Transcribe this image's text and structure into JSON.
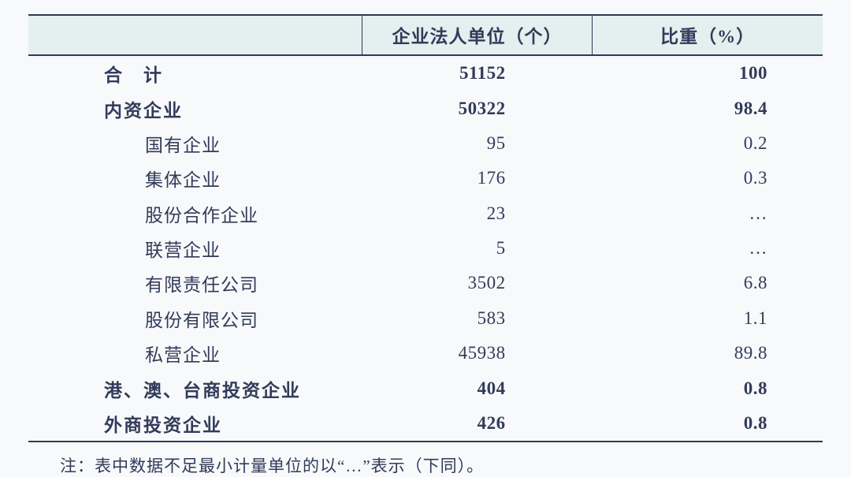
{
  "table": {
    "type": "table",
    "background_color": "#f8f9fb",
    "header_background": "#e4eff0",
    "border_color": "#2f3a55",
    "text_color": "#323b59",
    "font_family": "SimSun",
    "header_fontsize_pt": 17,
    "body_fontsize_pt": 17,
    "columns": [
      {
        "label": "",
        "width_pct": 42,
        "align": "left"
      },
      {
        "label": "企业法人单位（个）",
        "width_pct": 29,
        "align": "right"
      },
      {
        "label": "比重（%）",
        "width_pct": 29,
        "align": "right"
      }
    ],
    "rows": [
      {
        "label": "合　计",
        "count": "51152",
        "ratio": "100",
        "bold": true,
        "indent": false
      },
      {
        "label": "内资企业",
        "count": "50322",
        "ratio": "98.4",
        "bold": true,
        "indent": false
      },
      {
        "label": "国有企业",
        "count": "95",
        "ratio": "0.2",
        "bold": false,
        "indent": true
      },
      {
        "label": "集体企业",
        "count": "176",
        "ratio": "0.3",
        "bold": false,
        "indent": true
      },
      {
        "label": "股份合作企业",
        "count": "23",
        "ratio": "…",
        "bold": false,
        "indent": true
      },
      {
        "label": "联营企业",
        "count": "5",
        "ratio": "…",
        "bold": false,
        "indent": true
      },
      {
        "label": "有限责任公司",
        "count": "3502",
        "ratio": "6.8",
        "bold": false,
        "indent": true
      },
      {
        "label": "股份有限公司",
        "count": "583",
        "ratio": "1.1",
        "bold": false,
        "indent": true
      },
      {
        "label": "私营企业",
        "count": "45938",
        "ratio": "89.8",
        "bold": false,
        "indent": true
      },
      {
        "label": "港、澳、台商投资企业",
        "count": "404",
        "ratio": "0.8",
        "bold": true,
        "indent": false
      },
      {
        "label": "外商投资企业",
        "count": "426",
        "ratio": "0.8",
        "bold": true,
        "indent": false
      }
    ]
  },
  "footnote": {
    "lead": "注：",
    "text": "表中数据不足最小计量单位的以“…”表示（下同）。"
  }
}
